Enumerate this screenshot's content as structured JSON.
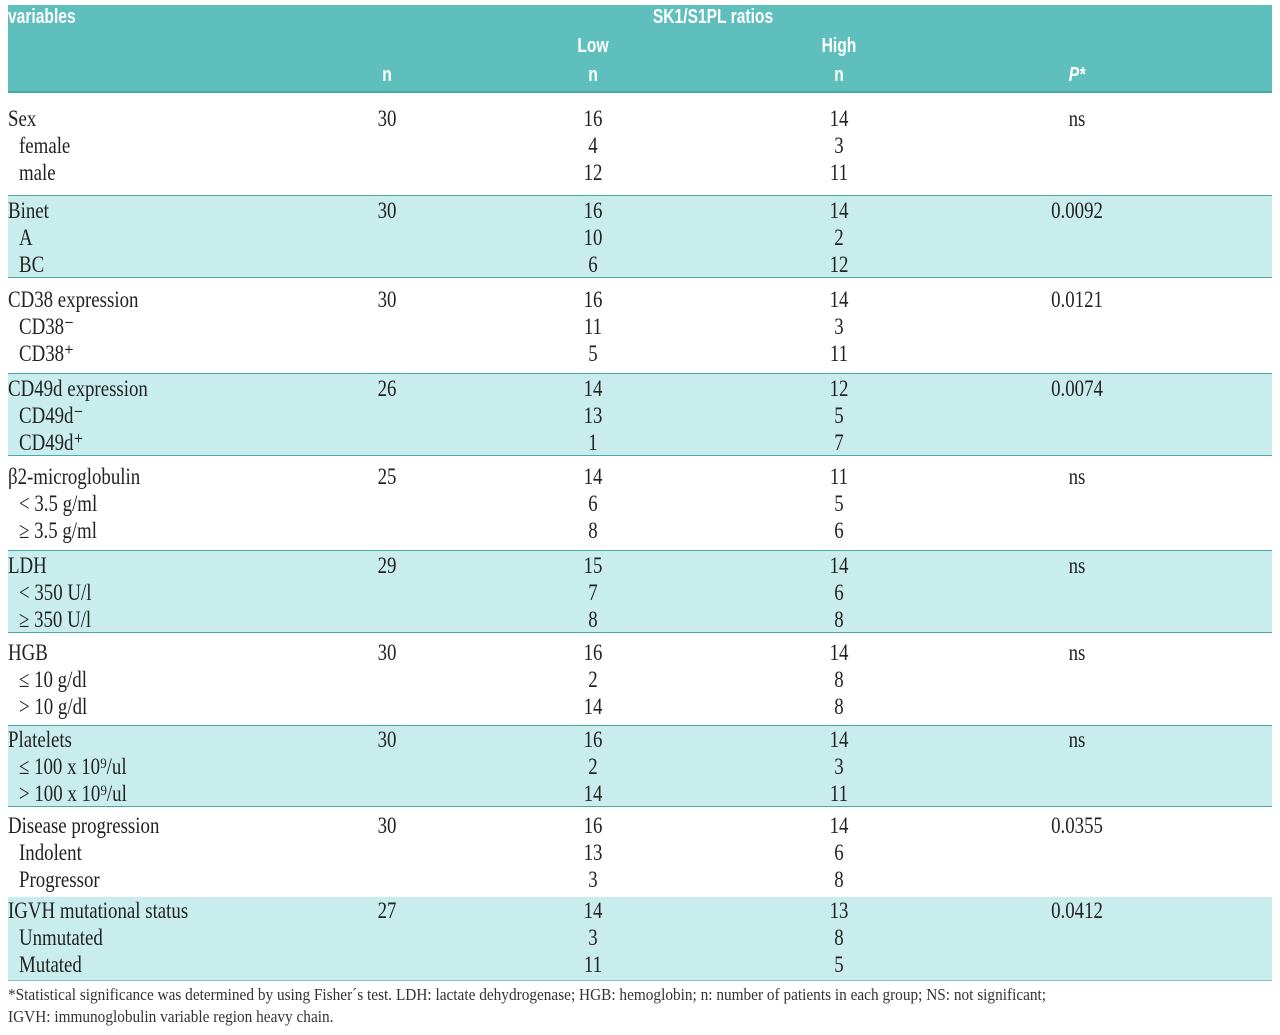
{
  "header": {
    "variables": "variables",
    "group_title": "SK1/S1PL ratios",
    "low": "Low",
    "high": "High",
    "n": "n",
    "p": "P*"
  },
  "colors": {
    "header_bg": "#5fbfbd",
    "shade_bg": "#c9ecec",
    "rule": "#4aa9a7"
  },
  "groups": [
    {
      "label": "Sex",
      "n": "30",
      "low": "16",
      "high": "14",
      "p": "ns",
      "subs": [
        {
          "label": "female",
          "low": "4",
          "high": "3"
        },
        {
          "label": "male",
          "low": "12",
          "high": "11"
        }
      ]
    },
    {
      "label": "Binet",
      "n": "30",
      "low": "16",
      "high": "14",
      "p": "0.0092",
      "subs": [
        {
          "label": "A",
          "low": "10",
          "high": "2"
        },
        {
          "label": "BC",
          "low": "6",
          "high": "12"
        }
      ]
    },
    {
      "label": "CD38 expression",
      "n": "30",
      "low": "16",
      "high": "14",
      "p": "0.0121",
      "subs": [
        {
          "label": "CD38⁻",
          "low": "11",
          "high": "3"
        },
        {
          "label": "CD38⁺",
          "low": "5",
          "high": "11"
        }
      ]
    },
    {
      "label": "CD49d expression",
      "n": "26",
      "low": "14",
      "high": "12",
      "p": "0.0074",
      "subs": [
        {
          "label": "CD49d⁻",
          "low": "13",
          "high": "5"
        },
        {
          "label": "CD49d⁺",
          "low": "1",
          "high": "7"
        }
      ]
    },
    {
      "label": "β2-microglobulin",
      "n": "25",
      "low": "14",
      "high": "11",
      "p": "ns",
      "subs": [
        {
          "label": "< 3.5  g/ml",
          "low": "6",
          "high": "5"
        },
        {
          "label": "≥ 3.5  g/ml",
          "low": "8",
          "high": "6"
        }
      ]
    },
    {
      "label": "LDH",
      "n": "29",
      "low": "15",
      "high": "14",
      "p": "ns",
      "subs": [
        {
          "label": "< 350 U/l",
          "low": "7",
          "high": "6"
        },
        {
          "label": "≥ 350 U/l",
          "low": "8",
          "high": "8"
        }
      ]
    },
    {
      "label": "HGB",
      "n": "30",
      "low": "16",
      "high": "14",
      "p": "ns",
      "subs": [
        {
          "label": "≤ 10 g/dl",
          "low": "2",
          "high": "8"
        },
        {
          "label": "> 10 g/dl",
          "low": "14",
          "high": "8"
        }
      ]
    },
    {
      "label": "Platelets",
      "n": "30",
      "low": "16",
      "high": "14",
      "p": "ns",
      "subs": [
        {
          "label": "≤ 100 x 10⁹/ul",
          "low": "2",
          "high": "3"
        },
        {
          "label": "> 100 x 10⁹/ul",
          "low": "14",
          "high": "11"
        }
      ]
    },
    {
      "label": "Disease progression",
      "n": "30",
      "low": "16",
      "high": "14",
      "p": "0.0355",
      "subs": [
        {
          "label": "Indolent",
          "low": "13",
          "high": "6"
        },
        {
          "label": "Progressor",
          "low": "3",
          "high": "8"
        }
      ]
    },
    {
      "label": "IGVH mutational status",
      "n": "27",
      "low": "14",
      "high": "13",
      "p": "0.0412",
      "subs": [
        {
          "label": "Unmutated",
          "low": "3",
          "high": "8"
        },
        {
          "label": "Mutated",
          "low": "11",
          "high": "5"
        }
      ]
    }
  ],
  "footnote": {
    "line1": "*Statistical significance was determined by using Fisher´s test. LDH: lactate dehydrogenase; HGB: hemoglobin; n: number of patients in each group; NS: not significant;",
    "line2": "IGVH: immunoglobulin variable region heavy chain."
  }
}
